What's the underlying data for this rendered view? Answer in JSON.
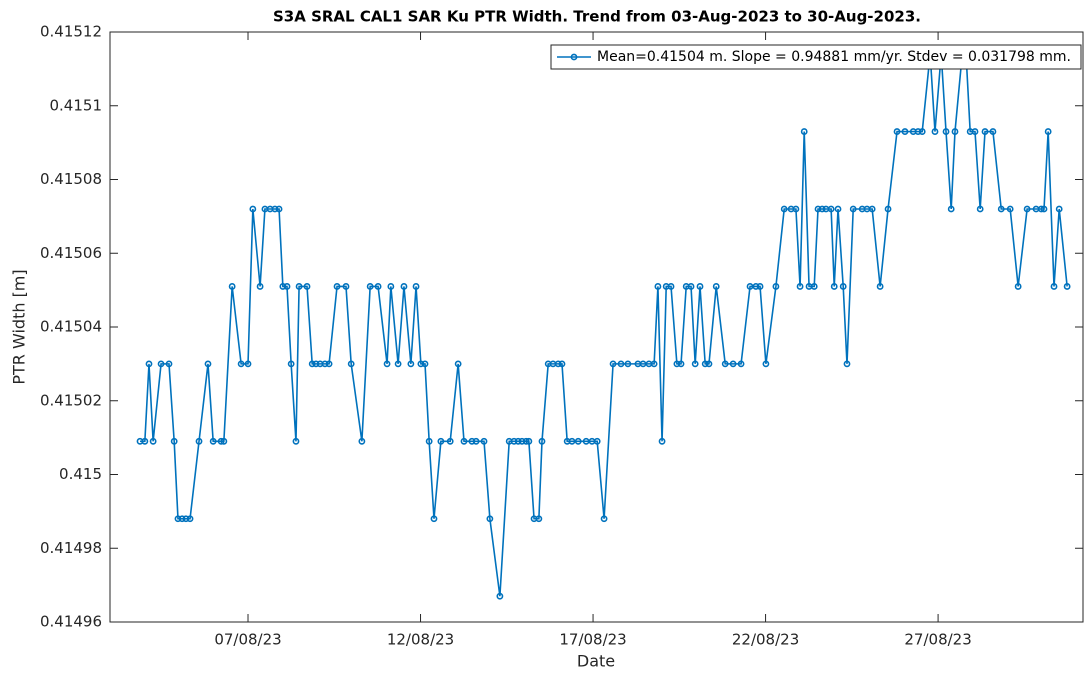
{
  "chart_data": {
    "type": "line",
    "title": "S3A SRAL CAL1 SAR Ku PTR Width. Trend from 03-Aug-2023 to 30-Aug-2023.",
    "xlabel": "Date",
    "ylabel": "PTR Width [m]",
    "x": [
      3.87,
      4.01,
      4.13,
      4.25,
      4.48,
      4.71,
      4.86,
      4.97,
      5.09,
      5.2,
      5.32,
      5.58,
      5.84,
      5.99,
      6.22,
      6.3,
      6.54,
      6.8,
      7.0,
      7.14,
      7.35,
      7.49,
      7.64,
      7.78,
      7.9,
      8.01,
      8.13,
      8.25,
      8.39,
      8.48,
      8.71,
      8.86,
      8.97,
      9.09,
      9.23,
      9.35,
      9.58,
      9.84,
      9.99,
      10.3,
      10.54,
      10.77,
      11.03,
      11.14,
      11.35,
      11.52,
      11.72,
      11.87,
      12.01,
      12.13,
      12.25,
      12.39,
      12.59,
      12.86,
      13.09,
      13.26,
      13.49,
      13.61,
      13.84,
      14.01,
      14.3,
      14.57,
      14.71,
      14.83,
      14.94,
      15.06,
      15.14,
      15.29,
      15.43,
      15.52,
      15.7,
      15.84,
      15.99,
      16.1,
      16.25,
      16.39,
      16.57,
      16.8,
      16.97,
      17.12,
      17.32,
      17.58,
      17.81,
      18.01,
      18.3,
      18.45,
      18.62,
      18.77,
      18.88,
      19.0,
      19.12,
      19.26,
      19.43,
      19.55,
      19.7,
      19.84,
      19.96,
      20.1,
      20.25,
      20.36,
      20.57,
      20.83,
      21.06,
      21.29,
      21.55,
      21.72,
      21.84,
      22.01,
      22.3,
      22.54,
      22.74,
      22.88,
      23.0,
      23.12,
      23.26,
      23.41,
      23.52,
      23.64,
      23.75,
      23.9,
      23.99,
      24.1,
      24.25,
      24.36,
      24.54,
      24.8,
      24.94,
      25.09,
      25.32,
      25.55,
      25.81,
      26.04,
      26.28,
      26.42,
      26.54,
      26.77,
      26.91,
      27.09,
      27.23,
      27.38,
      27.49,
      27.7,
      27.81,
      27.93,
      28.07,
      28.22,
      28.36,
      28.59,
      28.83,
      29.09,
      29.32,
      29.58,
      29.84,
      29.99,
      30.07,
      30.19,
      30.36,
      30.51,
      30.74
    ],
    "series": [
      {
        "name": "Mean=0.41504 m. Slope = 0.94881 mm/yr. Stdev = 0.031798 mm.",
        "color": "#0072bd",
        "values": [
          0.415009,
          0.415009,
          0.41503,
          0.415009,
          0.41503,
          0.41503,
          0.415009,
          0.414988,
          0.414988,
          0.414988,
          0.414988,
          0.415009,
          0.41503,
          0.415009,
          0.415009,
          0.415009,
          0.415051,
          0.41503,
          0.41503,
          0.415072,
          0.415051,
          0.415072,
          0.415072,
          0.415072,
          0.415072,
          0.415051,
          0.415051,
          0.41503,
          0.415009,
          0.415051,
          0.415051,
          0.41503,
          0.41503,
          0.41503,
          0.41503,
          0.41503,
          0.415051,
          0.415051,
          0.41503,
          0.415009,
          0.415051,
          0.415051,
          0.41503,
          0.415051,
          0.41503,
          0.415051,
          0.41503,
          0.415051,
          0.41503,
          0.41503,
          0.415009,
          0.414988,
          0.415009,
          0.415009,
          0.41503,
          0.415009,
          0.415009,
          0.415009,
          0.415009,
          0.414988,
          0.414967,
          0.415009,
          0.415009,
          0.415009,
          0.415009,
          0.415009,
          0.415009,
          0.414988,
          0.414988,
          0.415009,
          0.41503,
          0.41503,
          0.41503,
          0.41503,
          0.415009,
          0.415009,
          0.415009,
          0.415009,
          0.415009,
          0.415009,
          0.414988,
          0.41503,
          0.41503,
          0.41503,
          0.41503,
          0.41503,
          0.41503,
          0.41503,
          0.415051,
          0.415009,
          0.415051,
          0.415051,
          0.41503,
          0.41503,
          0.415051,
          0.415051,
          0.41503,
          0.415051,
          0.41503,
          0.41503,
          0.415051,
          0.41503,
          0.41503,
          0.41503,
          0.415051,
          0.415051,
          0.415051,
          0.41503,
          0.415051,
          0.415072,
          0.415072,
          0.415072,
          0.415051,
          0.415093,
          0.415051,
          0.415051,
          0.415072,
          0.415072,
          0.415072,
          0.415072,
          0.415051,
          0.415072,
          0.415051,
          0.41503,
          0.415072,
          0.415072,
          0.415072,
          0.415072,
          0.415051,
          0.415072,
          0.415093,
          0.415093,
          0.415093,
          0.415093,
          0.415093,
          0.415114,
          0.415093,
          0.415114,
          0.415093,
          0.415072,
          0.415093,
          0.415114,
          0.415114,
          0.415093,
          0.415093,
          0.415072,
          0.415093,
          0.415093,
          0.415072,
          0.415072,
          0.415051,
          0.415072,
          0.415072,
          0.415072,
          0.415072,
          0.415093,
          0.415051,
          0.415072,
          0.415051
        ]
      }
    ],
    "xlim": [
      3,
      31.2
    ],
    "xticks": [
      {
        "value": 7,
        "label": "07/08/23"
      },
      {
        "value": 12,
        "label": "12/08/23"
      },
      {
        "value": 17,
        "label": "17/08/23"
      },
      {
        "value": 22,
        "label": "22/08/23"
      },
      {
        "value": 27,
        "label": "27/08/23"
      }
    ],
    "ylim": [
      0.41496,
      0.41512
    ],
    "yticks": [
      0.41496,
      0.41498,
      0.415,
      0.41502,
      0.41504,
      0.41506,
      0.41508,
      0.4151,
      0.41512
    ],
    "grid": false,
    "legend": "upper right"
  }
}
